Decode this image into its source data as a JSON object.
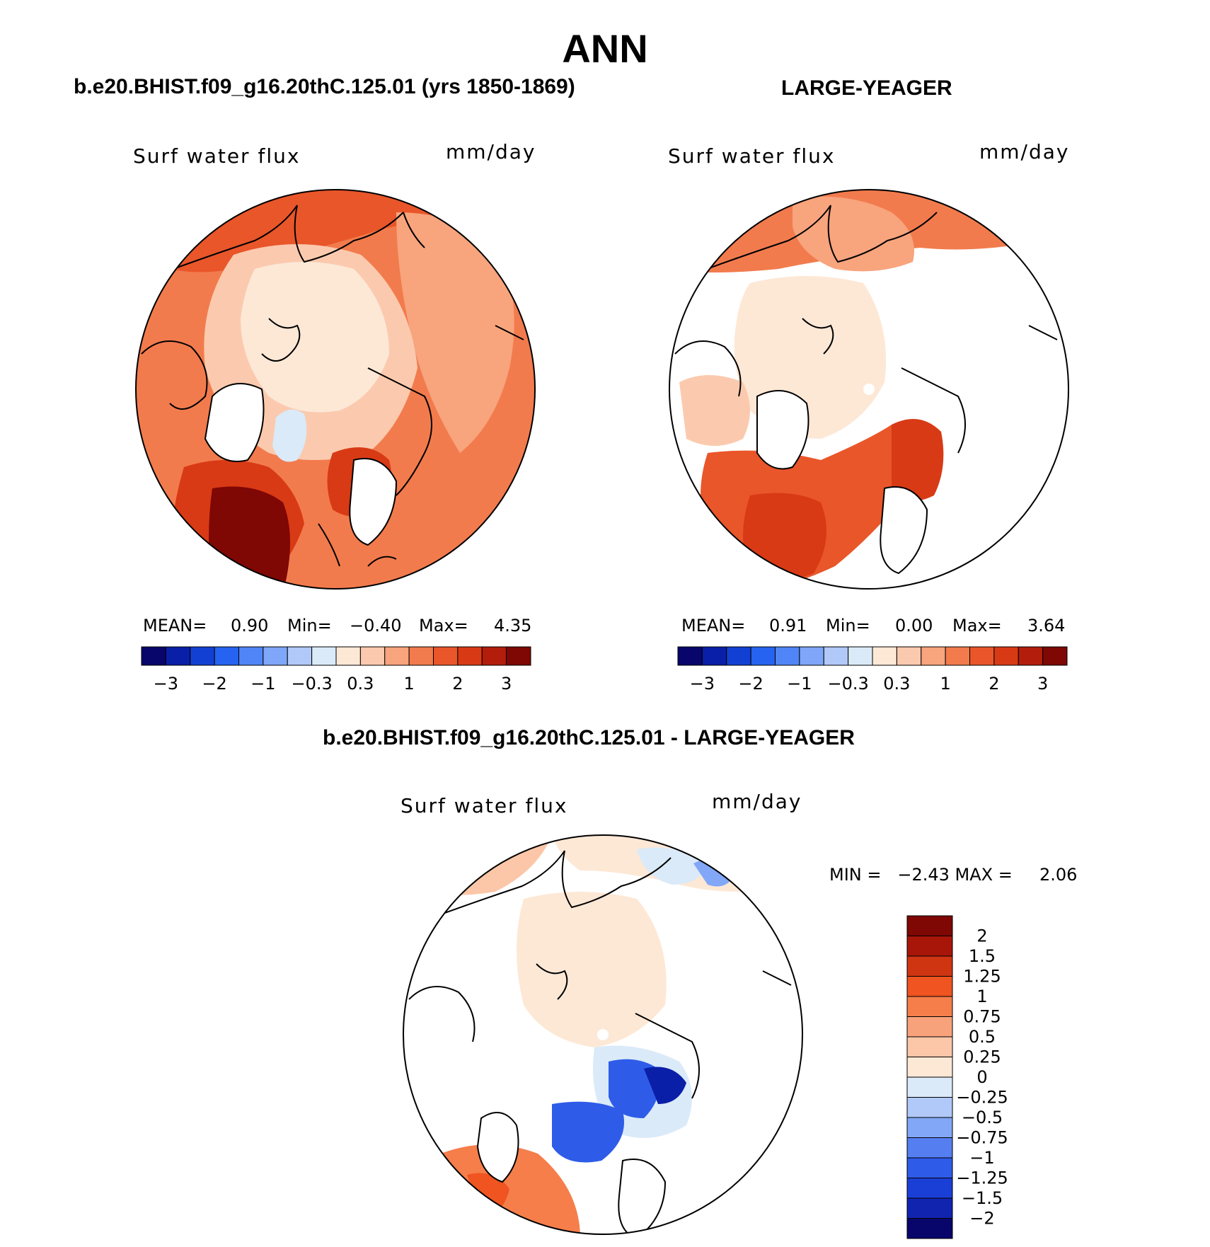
{
  "main_title": "ANN",
  "panel_left": {
    "title": "b.e20.BHIST.f09_g16.20thC.125.01 (yrs 1850-1869)",
    "variable": "Surf water flux",
    "units": "mm/day",
    "mean_label": "MEAN=",
    "mean": "0.90",
    "min_label": "Min=",
    "min": "−0.40",
    "max_label": "Max=",
    "max": "4.35"
  },
  "panel_right": {
    "title": "LARGE-YEAGER",
    "variable": "Surf water flux",
    "units": "mm/day",
    "mean_label": "MEAN=",
    "mean": "0.91",
    "min_label": "Min=",
    "min": "0.00",
    "max_label": "Max=",
    "max": "3.64"
  },
  "panel_diff": {
    "title": "b.e20.BHIST.f09_g16.20thC.125.01 - LARGE-YEAGER",
    "variable": "Surf water flux",
    "units": "mm/day",
    "minmax_text": "MIN =   −2.43 MAX =     2.06"
  },
  "colorbar_main": {
    "colors": [
      "#08066b",
      "#0a1fa8",
      "#1240d3",
      "#2563f0",
      "#4f85f6",
      "#7fa6f8",
      "#b1c9f8",
      "#daeaf8",
      "#fde8d6",
      "#fbcaae",
      "#f8a47d",
      "#f27b4d",
      "#e9562a",
      "#d83a15",
      "#b21d0c",
      "#7f0704"
    ],
    "tick_labels": [
      "−3",
      "−2",
      "−1",
      "−0.3",
      "0.3",
      "1",
      "2",
      "3"
    ]
  },
  "colorbar_diff": {
    "colors": [
      "#7f0704",
      "#a8160a",
      "#d03512",
      "#ef5421",
      "#f57e4b",
      "#f8a27c",
      "#fbc7a8",
      "#fde8d6",
      "#daeaf8",
      "#b1c9f8",
      "#82a7f6",
      "#557ff1",
      "#2e5ce8",
      "#1a3fd6",
      "#1024b0",
      "#08066b"
    ],
    "tick_labels": [
      "2",
      "1.5",
      "1.25",
      "1",
      "0.75",
      "0.5",
      "0.25",
      "0",
      "−0.25",
      "−0.5",
      "−0.75",
      "−1",
      "−1.25",
      "−1.5",
      "−2"
    ]
  },
  "chart_data": [
    {
      "type": "heatmap",
      "title": "b.e20.BHIST.f09_g16.20thC.125.01 (yrs 1850-1869)",
      "variable": "Surf water flux",
      "units": "mm/day",
      "projection": "north polar stereographic",
      "levels": [
        -3,
        -2.5,
        -2,
        -1.5,
        -1,
        -0.6,
        -0.3,
        0,
        0.3,
        0.6,
        1,
        1.5,
        2,
        2.5,
        3
      ],
      "mean": 0.9,
      "min": -0.4,
      "max": 4.35
    },
    {
      "type": "heatmap",
      "title": "LARGE-YEAGER",
      "variable": "Surf water flux",
      "units": "mm/day",
      "projection": "north polar stereographic",
      "levels": [
        -3,
        -2.5,
        -2,
        -1.5,
        -1,
        -0.6,
        -0.3,
        0,
        0.3,
        0.6,
        1,
        1.5,
        2,
        2.5,
        3
      ],
      "mean": 0.91,
      "min": 0.0,
      "max": 3.64
    },
    {
      "type": "heatmap",
      "title": "b.e20.BHIST.f09_g16.20thC.125.01 - LARGE-YEAGER",
      "variable": "Surf water flux",
      "units": "mm/day",
      "projection": "north polar stereographic",
      "levels": [
        -2,
        -1.5,
        -1.25,
        -1,
        -0.75,
        -0.5,
        -0.25,
        0,
        0.25,
        0.5,
        0.75,
        1,
        1.25,
        1.5,
        2
      ],
      "min": -2.43,
      "max": 2.06
    }
  ]
}
